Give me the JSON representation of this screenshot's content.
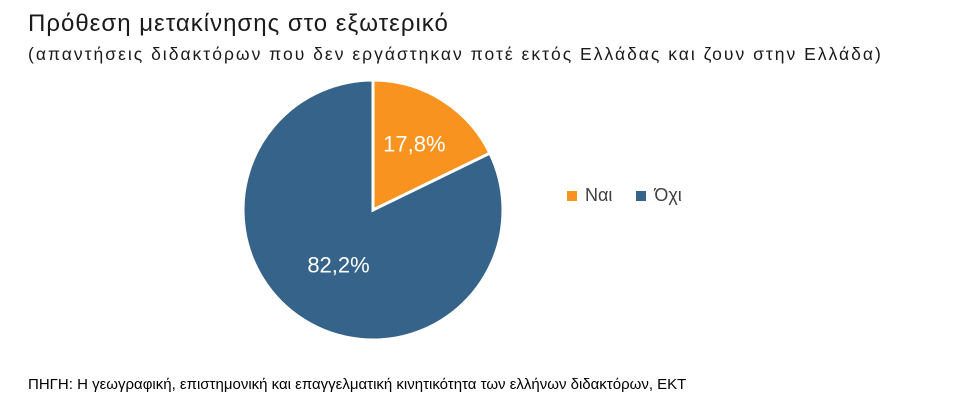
{
  "chart_data": {
    "type": "pie",
    "title": "Πρόθεση μετακίνησης στο εξωτερικό",
    "subtitle": "(απαντήσεις διδακτόρων που δεν εργάστηκαν ποτέ εκτός Ελλάδας και ζουν στην Ελλάδα)",
    "categories": [
      "Ναι",
      "Όχι"
    ],
    "values": [
      17.8,
      82.2
    ],
    "data_labels": [
      "17,8%",
      "82,2%"
    ],
    "colors": [
      "#F7931E",
      "#356389"
    ],
    "legend_position": "right"
  },
  "source": "ΠΗΓΗ: Η γεωγραφική, επιστημονική και επαγγελματική κινητικότητα των ελλήνων διδακτόρων, ΕΚΤ"
}
